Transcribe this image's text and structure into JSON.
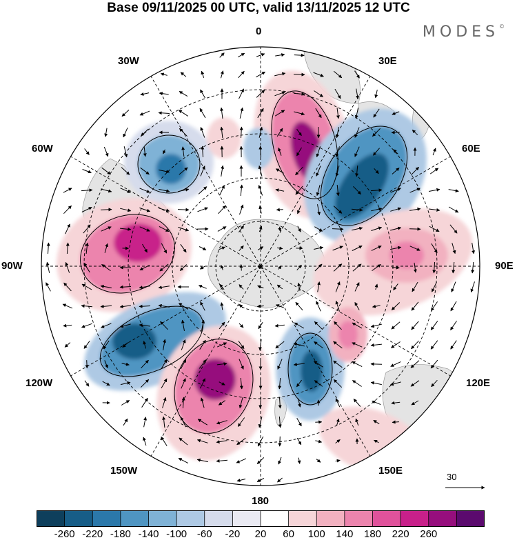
{
  "title": "Base 09/11/2025 00 UTC, valid 13/11/2025 12 UTC",
  "brand": "MODES",
  "brand_mark": "©",
  "longitude_labels": {
    "top": "0",
    "nne": "30E",
    "ene": "60E",
    "east": "90E",
    "ese": "120E",
    "sse": "150E",
    "bottom": "180",
    "ssw": "150W",
    "wsw": "120W",
    "west": "90W",
    "wnw": "60W",
    "nnw": "30W"
  },
  "reference_vector": {
    "label": "30"
  },
  "colorbar": {
    "ticks": [
      "-260",
      "-220",
      "-180",
      "-140",
      "-100",
      "-60",
      "-20",
      "20",
      "60",
      "100",
      "140",
      "180",
      "220",
      "260"
    ],
    "colors": [
      "#0e3f5c",
      "#175d87",
      "#2b78aa",
      "#4f95c2",
      "#7fb2d6",
      "#aec9e4",
      "#d6dcec",
      "#eaeaf3",
      "#ffffff",
      "#f6d5d8",
      "#f2b1c0",
      "#ec84ad",
      "#e0529b",
      "#c8208a",
      "#960e7d",
      "#5b0a6e"
    ]
  },
  "anomaly_centers": [
    {
      "sign": "positive",
      "lon": "~20E",
      "value": 220
    },
    {
      "sign": "negative",
      "lon": "~55E",
      "value": -200
    },
    {
      "sign": "negative",
      "lon": "~25W",
      "value": -140
    },
    {
      "sign": "positive",
      "lon": "~80W",
      "value": 180
    },
    {
      "sign": "negative",
      "lon": "~115W",
      "value": -220
    },
    {
      "sign": "positive",
      "lon": "~155W",
      "value": 220
    },
    {
      "sign": "negative",
      "lon": "~155E",
      "value": -200
    },
    {
      "sign": "positive",
      "lon": "~95E",
      "value": 120
    }
  ]
}
